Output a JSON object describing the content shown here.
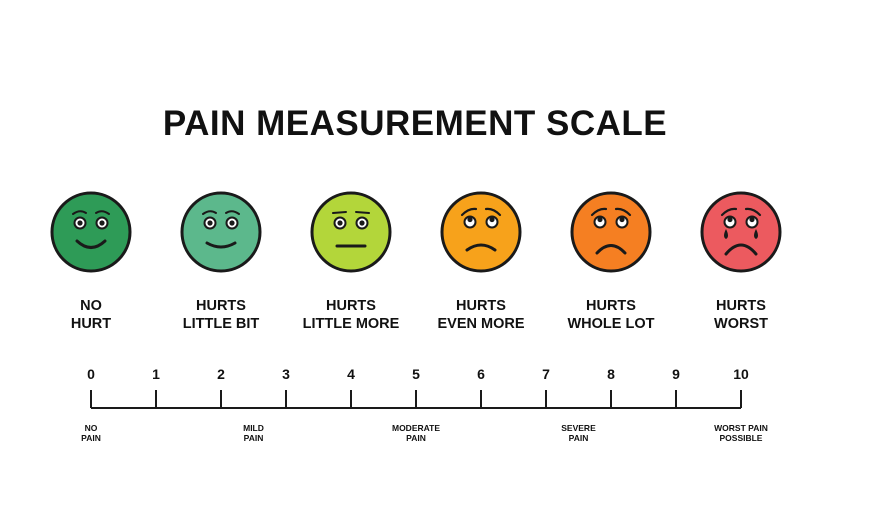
{
  "title": "PAIN MEASUREMENT SCALE",
  "faces": [
    {
      "line1": "NO",
      "line2": "HURT",
      "color": "#2e9b57",
      "mood": "happy"
    },
    {
      "line1": "HURTS",
      "line2": "LITTLE BIT",
      "color": "#5cb88c",
      "mood": "smile"
    },
    {
      "line1": "HURTS",
      "line2": "LITTLE MORE",
      "color": "#b3d63a",
      "mood": "neutral"
    },
    {
      "line1": "HURTS",
      "line2": "EVEN MORE",
      "color": "#f7a21b",
      "mood": "frown"
    },
    {
      "line1": "HURTS",
      "line2": "WHOLE LOT",
      "color": "#f57f22",
      "mood": "sad"
    },
    {
      "line1": "HURTS",
      "line2": "WORST",
      "color": "#ec5a5f",
      "mood": "crying"
    }
  ],
  "scale": {
    "min": 0,
    "max": 10,
    "ticks": [
      "0",
      "1",
      "2",
      "3",
      "4",
      "5",
      "6",
      "7",
      "8",
      "9",
      "10"
    ],
    "severity_labels": [
      {
        "at": 0,
        "line1": "NO",
        "line2": "PAIN"
      },
      {
        "at": 2.5,
        "line1": "MILD",
        "line2": "PAIN"
      },
      {
        "at": 5,
        "line1": "MODERATE",
        "line2": "PAIN"
      },
      {
        "at": 7.5,
        "line1": "SEVERE",
        "line2": "PAIN"
      },
      {
        "at": 10,
        "line1": "WORST PAIN",
        "line2": "POSSIBLE"
      }
    ]
  }
}
